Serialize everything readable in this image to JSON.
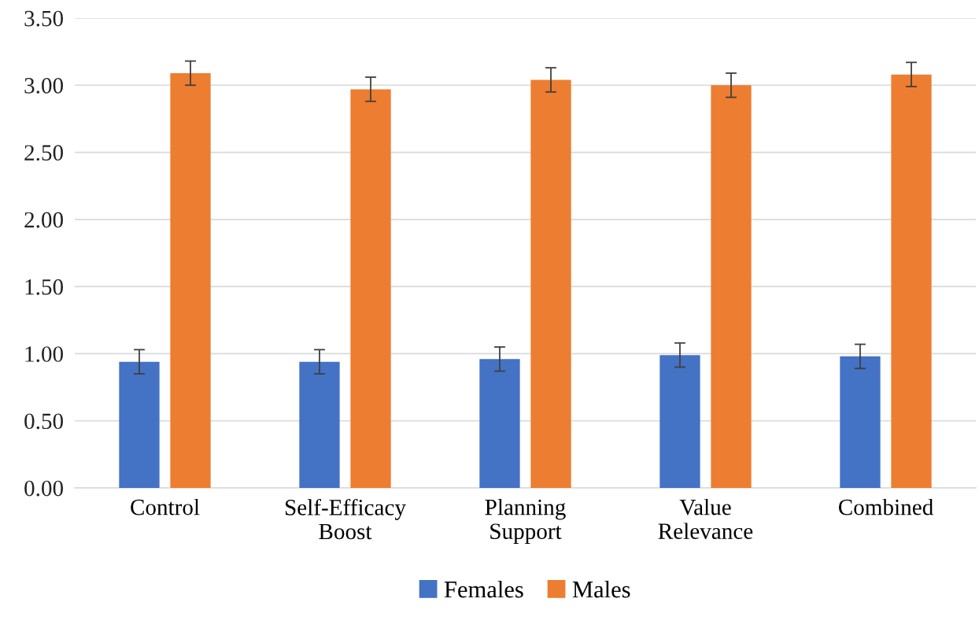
{
  "chart_data": {
    "type": "bar",
    "categories": [
      "Control",
      "Self-Efficacy\nBoost",
      "Planning\nSupport",
      "Value\nRelevance",
      "Combined"
    ],
    "series": [
      {
        "name": "Females",
        "color": "#4472c4",
        "values": [
          0.94,
          0.94,
          0.96,
          0.99,
          0.98
        ],
        "errors": [
          0.09,
          0.09,
          0.09,
          0.09,
          0.09
        ]
      },
      {
        "name": "Males",
        "color": "#ed7d31",
        "values": [
          3.09,
          2.97,
          3.04,
          3.0,
          3.08
        ],
        "errors": [
          0.09,
          0.09,
          0.09,
          0.09,
          0.09
        ]
      }
    ],
    "ylim": [
      0,
      3.5
    ],
    "yticks": [
      {
        "value": 0,
        "label": "0.00"
      },
      {
        "value": 0.5,
        "label": "0.50"
      },
      {
        "value": 1,
        "label": "1.00"
      },
      {
        "value": 1.5,
        "label": "1.50"
      },
      {
        "value": 2,
        "label": "2.00"
      },
      {
        "value": 2.5,
        "label": "2.50"
      },
      {
        "value": 3,
        "label": "3.00"
      },
      {
        "value": 3.5,
        "label": "3.50"
      }
    ],
    "grid": "y",
    "legend": "bottom"
  }
}
